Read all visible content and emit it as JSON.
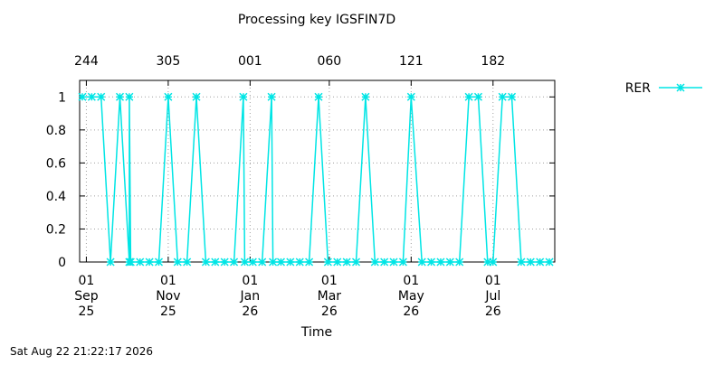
{
  "chart_data": {
    "type": "line",
    "title": "Processing key IGSFIN7D",
    "xlabel": "Time",
    "ylabel": "",
    "ylim": [
      0,
      1.1
    ],
    "yticks": [
      "0",
      "0.2",
      "0.4",
      "0.6",
      "0.8",
      "1"
    ],
    "ytick_values": [
      0,
      0.2,
      0.4,
      0.6,
      0.8,
      1
    ],
    "xlim": [
      "2025-08-27",
      "2026-08-16"
    ],
    "xticks_bottom": [
      {
        "date": "2025-09-01",
        "l1": "01",
        "l2": "Sep",
        "l3": "25"
      },
      {
        "date": "2025-11-01",
        "l1": "01",
        "l2": "Nov",
        "l3": "25"
      },
      {
        "date": "2026-01-01",
        "l1": "01",
        "l2": "Jan",
        "l3": "26"
      },
      {
        "date": "2026-03-01",
        "l1": "01",
        "l2": "Mar",
        "l3": "26"
      },
      {
        "date": "2026-05-01",
        "l1": "01",
        "l2": "May",
        "l3": "26"
      },
      {
        "date": "2026-07-01",
        "l1": "01",
        "l2": "Jul",
        "l3": "26"
      }
    ],
    "xticks_top": [
      {
        "date": "2025-09-01",
        "label": "244"
      },
      {
        "date": "2025-11-01",
        "label": "305"
      },
      {
        "date": "2026-01-01",
        "label": "001"
      },
      {
        "date": "2026-03-01",
        "label": "060"
      },
      {
        "date": "2026-05-01",
        "label": "121"
      },
      {
        "date": "2026-07-01",
        "label": "182"
      }
    ],
    "grid": true,
    "legend_position": "right",
    "series": [
      {
        "name": "RER",
        "color": "#00e5e5",
        "marker": "star",
        "points": [
          [
            "2025-08-29",
            1
          ],
          [
            "2025-09-05",
            1
          ],
          [
            "2025-09-12",
            1
          ],
          [
            "2025-09-19",
            0
          ],
          [
            "2025-09-26",
            1
          ],
          [
            "2025-10-03",
            0
          ],
          [
            "2025-10-03",
            1
          ],
          [
            "2025-10-04",
            0
          ],
          [
            "2025-10-11",
            0
          ],
          [
            "2025-10-18",
            0
          ],
          [
            "2025-10-25",
            0
          ],
          [
            "2025-11-01",
            1
          ],
          [
            "2025-11-08",
            0
          ],
          [
            "2025-11-15",
            0
          ],
          [
            "2025-11-22",
            1
          ],
          [
            "2025-11-29",
            0
          ],
          [
            "2025-12-06",
            0
          ],
          [
            "2025-12-13",
            0
          ],
          [
            "2025-12-20",
            0
          ],
          [
            "2025-12-27",
            1
          ],
          [
            "2025-12-28",
            0
          ],
          [
            "2026-01-03",
            0
          ],
          [
            "2026-01-10",
            0
          ],
          [
            "2026-01-17",
            1
          ],
          [
            "2026-01-18",
            0
          ],
          [
            "2026-01-24",
            0
          ],
          [
            "2026-01-31",
            0
          ],
          [
            "2026-02-07",
            0
          ],
          [
            "2026-02-14",
            0
          ],
          [
            "2026-02-21",
            1
          ],
          [
            "2026-02-28",
            0
          ],
          [
            "2026-03-07",
            0
          ],
          [
            "2026-03-14",
            0
          ],
          [
            "2026-03-21",
            0
          ],
          [
            "2026-03-28",
            1
          ],
          [
            "2026-04-04",
            0
          ],
          [
            "2026-04-11",
            0
          ],
          [
            "2026-04-18",
            0
          ],
          [
            "2026-04-25",
            0
          ],
          [
            "2026-05-01",
            1
          ],
          [
            "2026-05-09",
            0
          ],
          [
            "2026-05-16",
            0
          ],
          [
            "2026-05-23",
            0
          ],
          [
            "2026-05-30",
            0
          ],
          [
            "2026-06-06",
            0
          ],
          [
            "2026-06-13",
            1
          ],
          [
            "2026-06-20",
            1
          ],
          [
            "2026-06-27",
            0
          ],
          [
            "2026-07-01",
            0
          ],
          [
            "2026-07-08",
            1
          ],
          [
            "2026-07-15",
            1
          ],
          [
            "2026-07-22",
            0
          ],
          [
            "2026-07-29",
            0
          ],
          [
            "2026-08-05",
            0
          ],
          [
            "2026-08-12",
            0
          ]
        ]
      }
    ]
  },
  "timestamp": "Sat Aug 22 21:22:17 2026"
}
